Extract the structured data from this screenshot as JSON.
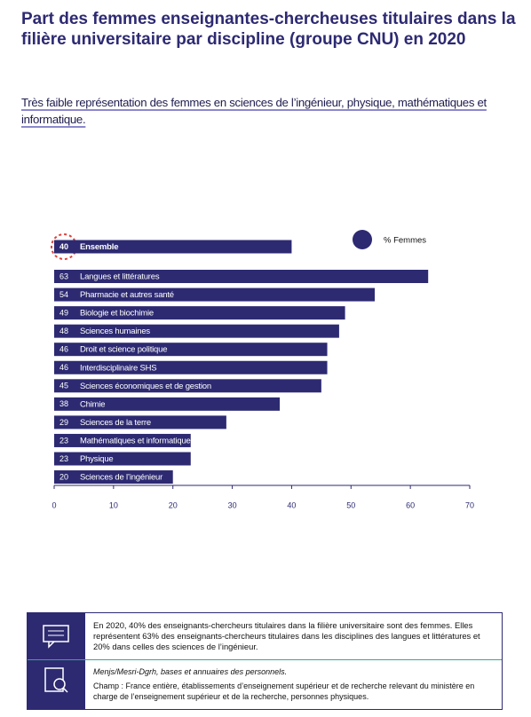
{
  "chart_data": {
    "type": "hbar",
    "title": "Part des femmes enseignantes-chercheuses titulaires dans la filière universitaire par discipline (groupe CNU) en 2020",
    "subtitle": "Très faible représentation des femmes en sciences de l’ingénieur, physique, mathématiques et informatique.",
    "categories": [
      "Ensemble",
      "Langues et littératures",
      "Pharmacie et autres santé",
      "Biologie et biochimie",
      "Sciences humaines",
      "Droit et science politique",
      "Interdisciplinaire SHS",
      "Sciences économiques et de gestion",
      "Chimie",
      "Sciences de la terre",
      "Mathématiques et informatique",
      "Physique",
      "Sciences de l’ingénieur"
    ],
    "series": [
      {
        "name": "% Femmes",
        "color": "#2d2a72",
        "values": [
          40,
          63,
          54,
          49,
          48,
          46,
          46,
          45,
          38,
          29,
          23,
          23,
          20
        ]
      }
    ],
    "xlim": [
      0,
      70
    ],
    "xticks": [
      0,
      10,
      20,
      30,
      40,
      50,
      60,
      70
    ]
  },
  "footer": {
    "summary": "En 2020, 40% des enseignants-chercheurs titulaires dans la filière universitaire sont des femmes. Elles représentent 63% des enseignants-chercheurs titulaires dans les disciplines des langues et littératures et 20% dans celles des sciences de l’ingénieur.",
    "source": "Menjs/Mesri-Dgrh, bases et annuaires des personnels.",
    "scope": "Champ : France entière, établissements d’enseignement supérieur et de recherche relevant du ministère en charge de l’enseignement supérieur et de la recherche, personnes physiques."
  }
}
